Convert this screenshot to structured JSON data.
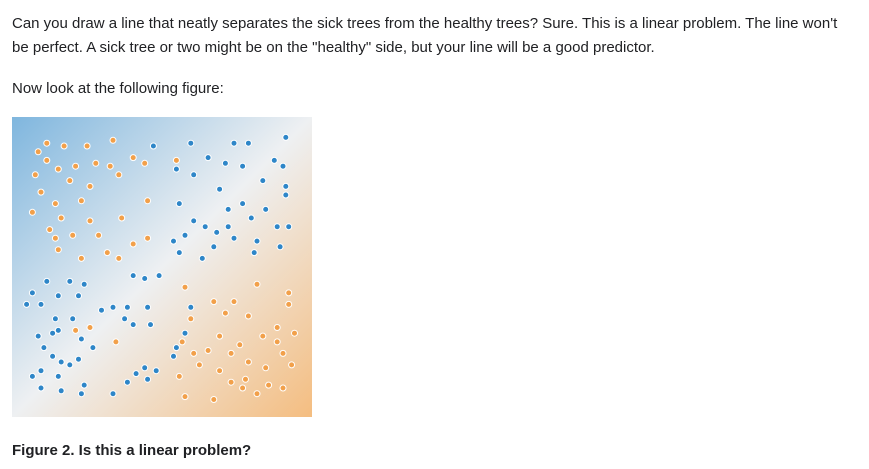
{
  "text": {
    "paragraph_1": "Can you draw a line that neatly separates the sick trees from the healthy trees? Sure. This is a linear problem. The line won't be perfect. A sick tree or two might be on the \"healthy\" side, but your line will be a good predictor.",
    "paragraph_2": "Now look at the following figure:",
    "caption": "Figure 2. Is this a linear problem?"
  },
  "colors": {
    "sick_dot": "#f2a04a",
    "healthy_dot": "#2e86c8",
    "background_blue": "#7fb6de",
    "background_white": "#eef0f2",
    "background_orange": "#f4bd80"
  },
  "chart_data": {
    "type": "scatter",
    "xlim": [
      0,
      1
    ],
    "ylim": [
      0,
      1
    ],
    "grid": false,
    "series": [
      {
        "color": "#f2a04a",
        "points": [
          [
            0.1,
            0.93
          ],
          [
            0.07,
            0.9
          ],
          [
            0.16,
            0.92
          ],
          [
            0.24,
            0.92
          ],
          [
            0.33,
            0.94
          ],
          [
            0.1,
            0.87
          ],
          [
            0.14,
            0.84
          ],
          [
            0.2,
            0.85
          ],
          [
            0.27,
            0.86
          ],
          [
            0.32,
            0.85
          ],
          [
            0.4,
            0.88
          ],
          [
            0.44,
            0.86
          ],
          [
            0.06,
            0.82
          ],
          [
            0.18,
            0.8
          ],
          [
            0.25,
            0.78
          ],
          [
            0.35,
            0.82
          ],
          [
            0.45,
            0.73
          ],
          [
            0.55,
            0.87
          ],
          [
            0.08,
            0.76
          ],
          [
            0.13,
            0.72
          ],
          [
            0.22,
            0.73
          ],
          [
            0.05,
            0.69
          ],
          [
            0.15,
            0.67
          ],
          [
            0.25,
            0.66
          ],
          [
            0.36,
            0.67
          ],
          [
            0.11,
            0.63
          ],
          [
            0.19,
            0.61
          ],
          [
            0.28,
            0.61
          ],
          [
            0.4,
            0.58
          ],
          [
            0.14,
            0.56
          ],
          [
            0.31,
            0.55
          ],
          [
            0.45,
            0.6
          ],
          [
            0.35,
            0.53
          ],
          [
            0.4,
            0.47
          ],
          [
            0.22,
            0.53
          ],
          [
            0.13,
            0.6
          ],
          [
            0.58,
            0.43
          ],
          [
            0.68,
            0.38
          ],
          [
            0.75,
            0.38
          ],
          [
            0.83,
            0.44
          ],
          [
            0.94,
            0.41
          ],
          [
            0.94,
            0.37
          ],
          [
            0.8,
            0.33
          ],
          [
            0.6,
            0.32
          ],
          [
            0.72,
            0.34
          ],
          [
            0.9,
            0.29
          ],
          [
            0.96,
            0.27
          ],
          [
            0.57,
            0.24
          ],
          [
            0.61,
            0.2
          ],
          [
            0.66,
            0.21
          ],
          [
            0.74,
            0.2
          ],
          [
            0.77,
            0.23
          ],
          [
            0.85,
            0.26
          ],
          [
            0.9,
            0.24
          ],
          [
            0.92,
            0.2
          ],
          [
            0.8,
            0.17
          ],
          [
            0.86,
            0.15
          ],
          [
            0.95,
            0.16
          ],
          [
            0.56,
            0.12
          ],
          [
            0.63,
            0.16
          ],
          [
            0.7,
            0.14
          ],
          [
            0.74,
            0.1
          ],
          [
            0.79,
            0.11
          ],
          [
            0.87,
            0.09
          ],
          [
            0.92,
            0.08
          ],
          [
            0.83,
            0.06
          ],
          [
            0.58,
            0.05
          ],
          [
            0.68,
            0.04
          ],
          [
            0.2,
            0.28
          ],
          [
            0.25,
            0.29
          ],
          [
            0.34,
            0.24
          ],
          [
            0.7,
            0.26
          ],
          [
            0.78,
            0.08
          ]
        ]
      },
      {
        "color": "#2e86c8",
        "points": [
          [
            0.47,
            0.92
          ],
          [
            0.6,
            0.93
          ],
          [
            0.75,
            0.93
          ],
          [
            0.8,
            0.93
          ],
          [
            0.93,
            0.95
          ],
          [
            0.66,
            0.88
          ],
          [
            0.72,
            0.86
          ],
          [
            0.55,
            0.84
          ],
          [
            0.61,
            0.82
          ],
          [
            0.78,
            0.85
          ],
          [
            0.89,
            0.87
          ],
          [
            0.92,
            0.85
          ],
          [
            0.85,
            0.8
          ],
          [
            0.93,
            0.78
          ],
          [
            0.93,
            0.75
          ],
          [
            0.7,
            0.77
          ],
          [
            0.56,
            0.72
          ],
          [
            0.78,
            0.72
          ],
          [
            0.86,
            0.7
          ],
          [
            0.73,
            0.7
          ],
          [
            0.81,
            0.67
          ],
          [
            0.61,
            0.66
          ],
          [
            0.65,
            0.64
          ],
          [
            0.69,
            0.62
          ],
          [
            0.73,
            0.64
          ],
          [
            0.75,
            0.6
          ],
          [
            0.68,
            0.57
          ],
          [
            0.58,
            0.61
          ],
          [
            0.54,
            0.59
          ],
          [
            0.83,
            0.59
          ],
          [
            0.9,
            0.64
          ],
          [
            0.94,
            0.64
          ],
          [
            0.56,
            0.55
          ],
          [
            0.64,
            0.53
          ],
          [
            0.82,
            0.55
          ],
          [
            0.91,
            0.57
          ],
          [
            0.1,
            0.45
          ],
          [
            0.18,
            0.45
          ],
          [
            0.23,
            0.44
          ],
          [
            0.4,
            0.47
          ],
          [
            0.44,
            0.46
          ],
          [
            0.49,
            0.47
          ],
          [
            0.05,
            0.41
          ],
          [
            0.14,
            0.4
          ],
          [
            0.21,
            0.4
          ],
          [
            0.03,
            0.37
          ],
          [
            0.08,
            0.37
          ],
          [
            0.13,
            0.32
          ],
          [
            0.19,
            0.32
          ],
          [
            0.29,
            0.35
          ],
          [
            0.33,
            0.36
          ],
          [
            0.38,
            0.36
          ],
          [
            0.45,
            0.36
          ],
          [
            0.37,
            0.32
          ],
          [
            0.4,
            0.3
          ],
          [
            0.46,
            0.3
          ],
          [
            0.07,
            0.26
          ],
          [
            0.14,
            0.28
          ],
          [
            0.22,
            0.25
          ],
          [
            0.26,
            0.22
          ],
          [
            0.09,
            0.22
          ],
          [
            0.12,
            0.19
          ],
          [
            0.15,
            0.17
          ],
          [
            0.18,
            0.16
          ],
          [
            0.08,
            0.14
          ],
          [
            0.14,
            0.12
          ],
          [
            0.08,
            0.08
          ],
          [
            0.15,
            0.07
          ],
          [
            0.22,
            0.06
          ],
          [
            0.33,
            0.06
          ],
          [
            0.41,
            0.13
          ],
          [
            0.44,
            0.15
          ],
          [
            0.48,
            0.14
          ],
          [
            0.38,
            0.1
          ],
          [
            0.45,
            0.11
          ],
          [
            0.58,
            0.27
          ],
          [
            0.55,
            0.22
          ],
          [
            0.54,
            0.19
          ],
          [
            0.6,
            0.36
          ],
          [
            0.05,
            0.12
          ],
          [
            0.23,
            0.09
          ],
          [
            0.21,
            0.18
          ],
          [
            0.12,
            0.27
          ]
        ]
      }
    ]
  }
}
